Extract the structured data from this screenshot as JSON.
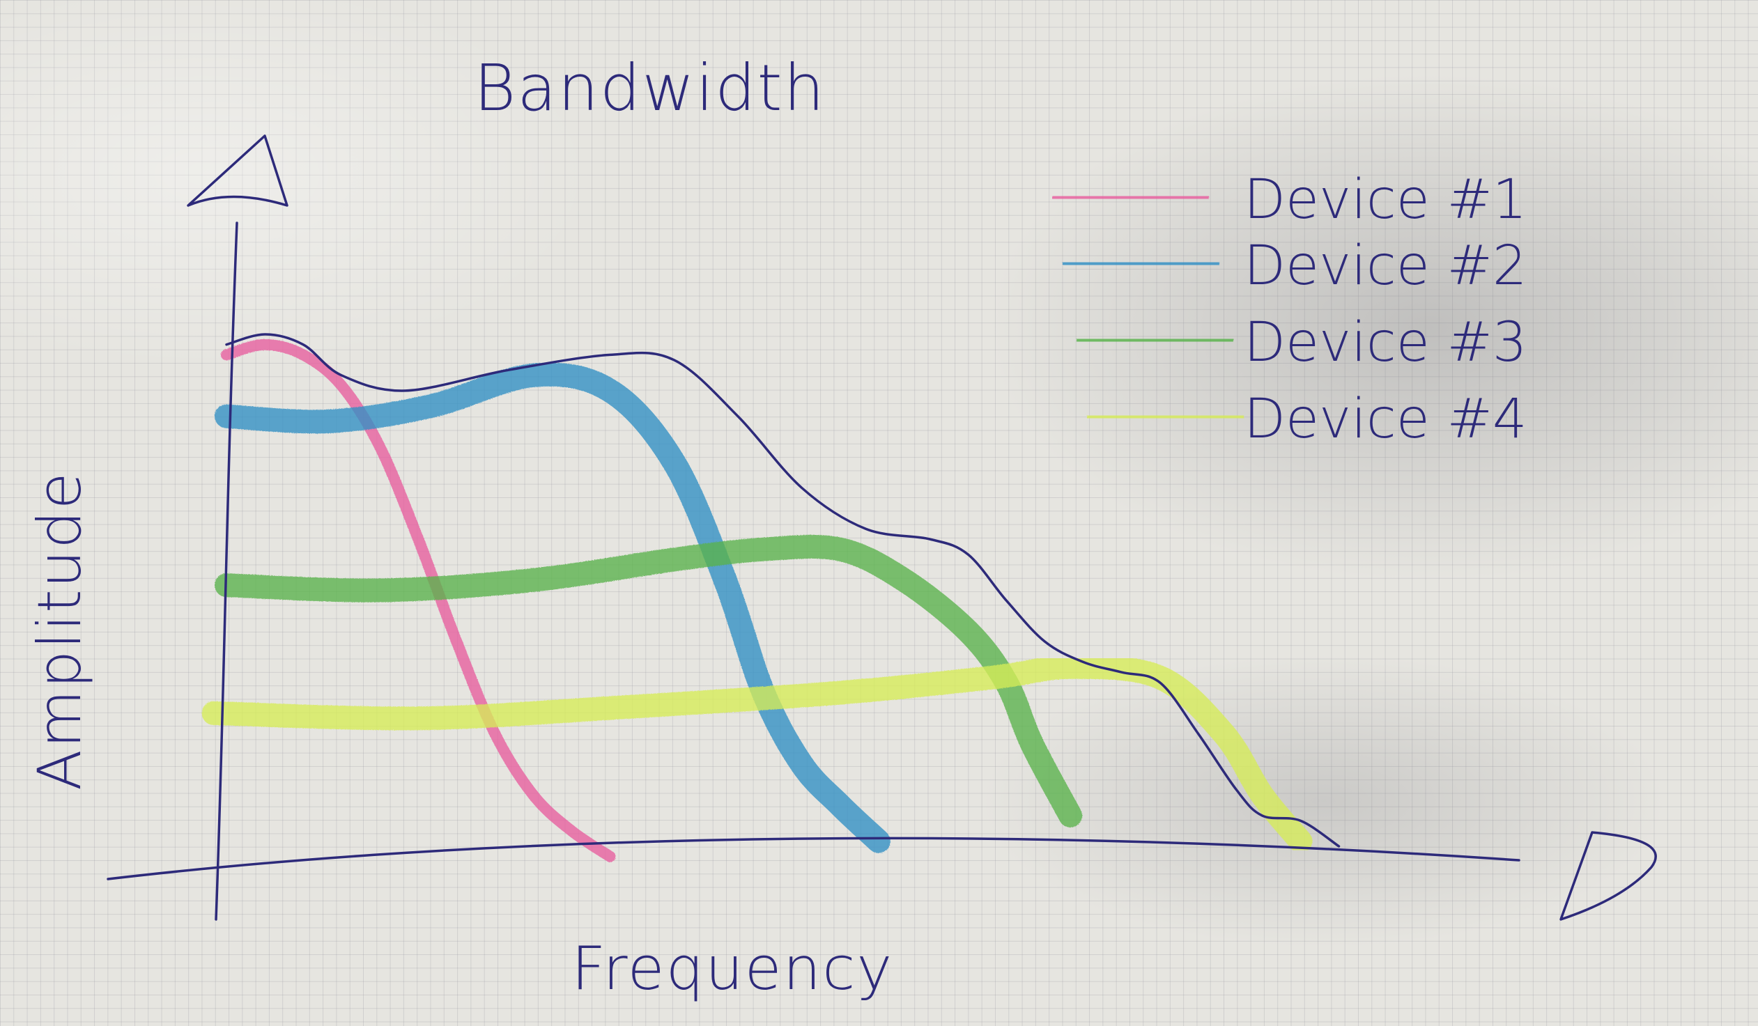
{
  "chart_data": {
    "type": "line",
    "title": "Bandwidth",
    "xlabel": "Frequency",
    "ylabel": "Amplitude",
    "xlim": [
      0,
      100
    ],
    "ylim": [
      0,
      100
    ],
    "legend_position": "top-right",
    "grid": true,
    "series": [
      {
        "name": "Device #1",
        "color": "#e85d9e",
        "x": [
          0,
          3,
          6,
          9,
          12,
          15,
          18,
          21,
          24,
          27,
          30
        ],
        "y": [
          96,
          98,
          96,
          90,
          78,
          60,
          40,
          22,
          10,
          3,
          -2
        ]
      },
      {
        "name": "Device #2",
        "color": "#2f8fc4",
        "x": [
          0,
          8,
          16,
          24,
          30,
          35,
          39,
          42,
          45,
          48,
          51
        ],
        "y": [
          84,
          83,
          86,
          92,
          89,
          75,
          52,
          30,
          16,
          8,
          1
        ]
      },
      {
        "name": "Device #3",
        "color": "#58b24a",
        "x": [
          0,
          12,
          24,
          35,
          42,
          48,
          53,
          58,
          61,
          63,
          66
        ],
        "y": [
          51,
          50,
          52,
          56,
          58,
          58,
          52,
          42,
          32,
          20,
          6
        ]
      },
      {
        "name": "Device #4",
        "color": "#d6ec57",
        "x": [
          -1,
          15,
          30,
          48,
          60,
          66,
          73,
          78,
          81,
          84
        ],
        "y": [
          26,
          25,
          27,
          30,
          33,
          35,
          33,
          22,
          10,
          1
        ]
      }
    ],
    "envelope": {
      "color": "#2d2a7a",
      "x": [
        0,
        3,
        6,
        9,
        14,
        22,
        30,
        35,
        40,
        45,
        50,
        55,
        58,
        61,
        64,
        67,
        70,
        73,
        76,
        79,
        81,
        84,
        87
      ],
      "y": [
        98,
        100,
        98,
        92,
        89,
        93,
        96,
        95,
        84,
        70,
        62,
        60,
        57,
        48,
        40,
        36,
        34,
        32,
        22,
        11,
        6,
        5,
        0
      ]
    }
  }
}
